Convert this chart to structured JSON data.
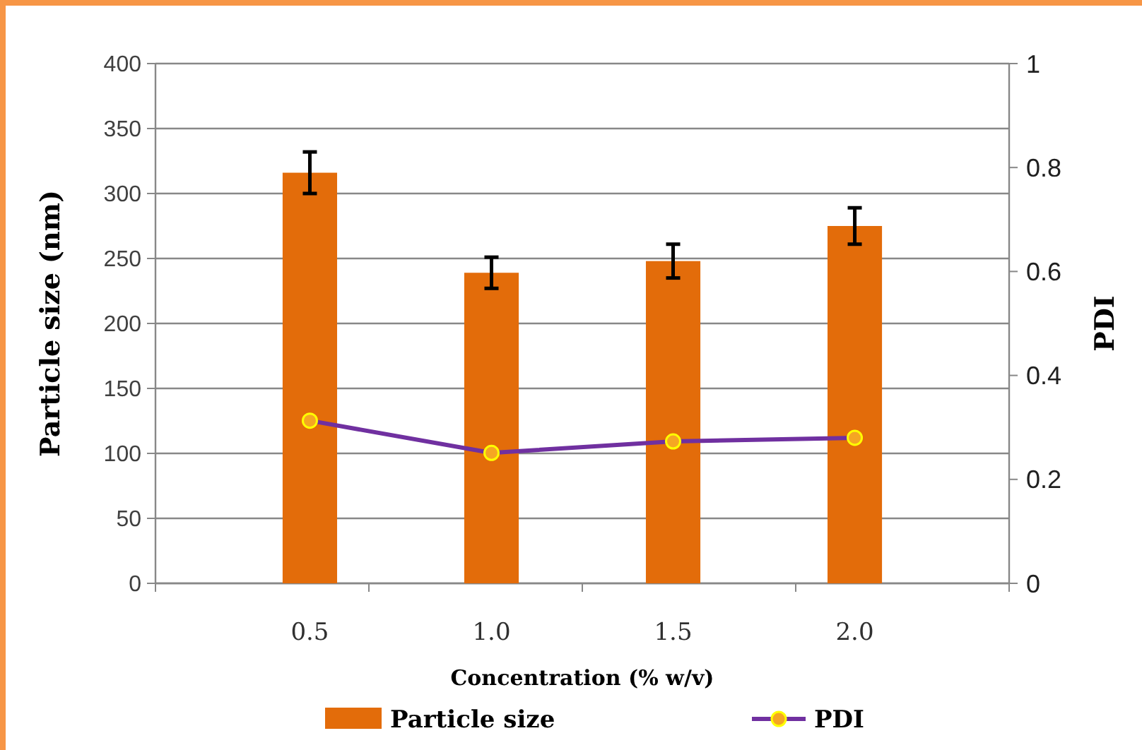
{
  "chart_data": {
    "type": "bar",
    "xlabel": "Concentration (% w/v)",
    "ylabel": "Particle size (nm)",
    "y2label": "PDI",
    "categories": [
      "0.5",
      "1.0",
      "1.5",
      "2.0"
    ],
    "series": [
      {
        "name": "Particle size",
        "color": "#e36c0a",
        "values": [
          316,
          239,
          248,
          275
        ],
        "errors": [
          16,
          12,
          13,
          14
        ]
      },
      {
        "name": "PDI",
        "type": "line",
        "axis": "y2",
        "color": "#7030a0",
        "values": [
          0.313,
          0.251,
          0.273,
          0.28
        ]
      }
    ],
    "ylim": [
      0,
      400
    ],
    "yticks": [
      0,
      50,
      100,
      150,
      200,
      250,
      300,
      350,
      400
    ],
    "y2lim": [
      0,
      1
    ],
    "y2ticks": [
      0,
      0.2,
      0.4,
      0.6,
      0.8,
      1
    ],
    "grid": "y",
    "legend": "bottom",
    "marker": "circle"
  }
}
